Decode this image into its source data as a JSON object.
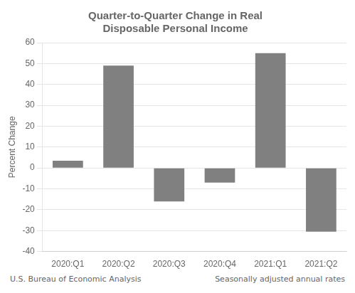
{
  "chart_data": {
    "type": "bar",
    "title": [
      "Quarter-to-Quarter Change in Real",
      "Disposable Personal Income"
    ],
    "ylabel": "Percent Change",
    "categories": [
      "2020:Q1",
      "2020:Q2",
      "2020:Q3",
      "2020:Q4",
      "2021:Q1",
      "2021:Q2"
    ],
    "values": [
      3.5,
      49.0,
      -16.0,
      -7.0,
      55.0,
      -30.5
    ],
    "color": "#808080",
    "ylim": [
      -40,
      60
    ],
    "yticks": [
      -40,
      -30,
      -20,
      -10,
      0,
      10,
      20,
      30,
      40,
      50,
      60
    ],
    "grid": true,
    "annotations": [
      "U.S. Bureau of Economic Analysis",
      "Seasonally adjusted annual rates"
    ]
  }
}
